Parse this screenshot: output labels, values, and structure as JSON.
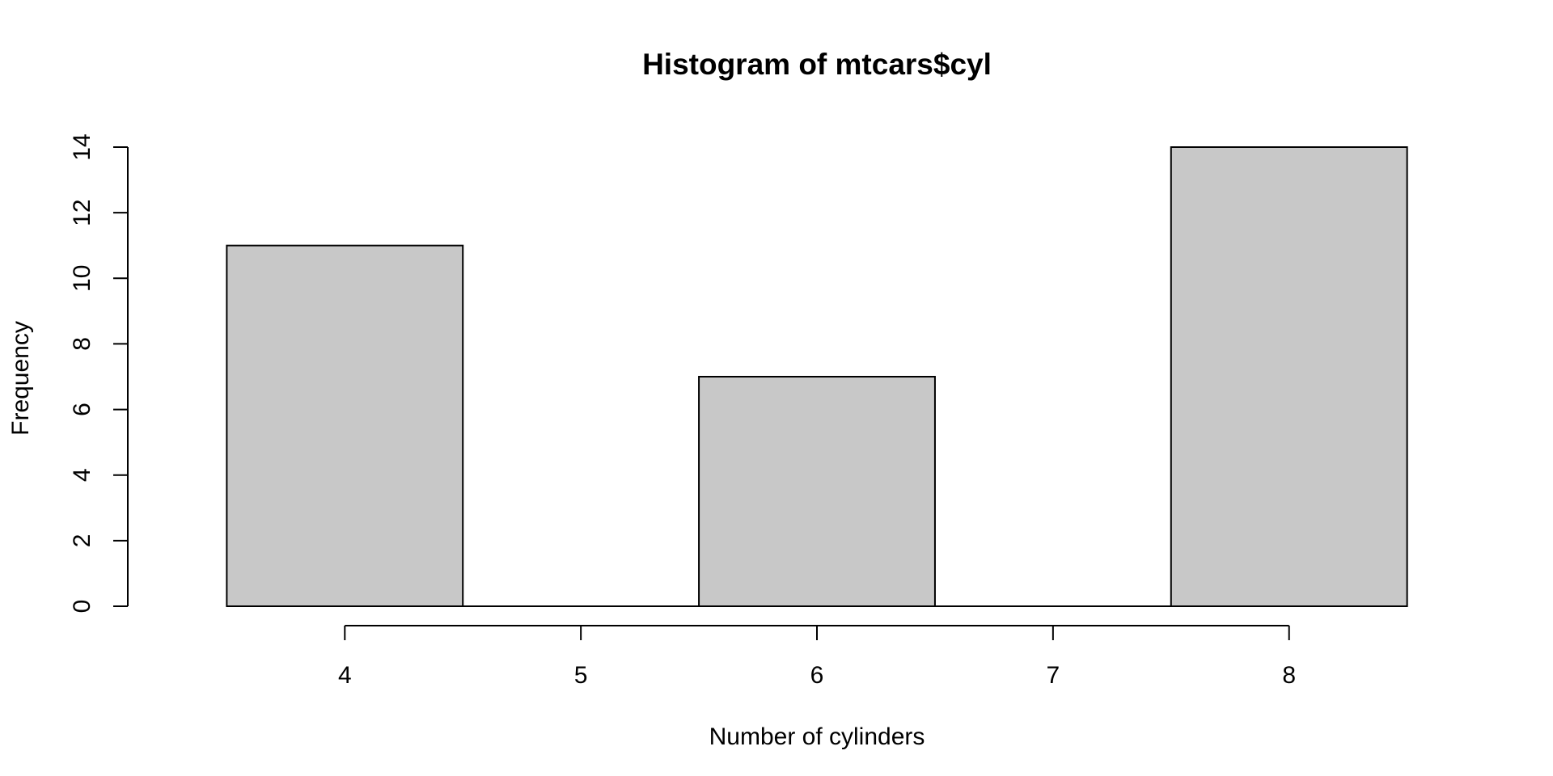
{
  "chart_data": {
    "type": "bar",
    "title": "Histogram of mtcars$cyl",
    "xlabel": "Number of cylinders",
    "ylabel": "Frequency",
    "bins": [
      {
        "from": 3.5,
        "to": 4.5,
        "count": 11
      },
      {
        "from": 4.5,
        "to": 5.5,
        "count": 0
      },
      {
        "from": 5.5,
        "to": 6.5,
        "count": 7
      },
      {
        "from": 6.5,
        "to": 7.5,
        "count": 0
      },
      {
        "from": 7.5,
        "to": 8.5,
        "count": 14
      }
    ],
    "xlim": [
      3.3,
      8.7
    ],
    "ylim": [
      0,
      14
    ],
    "x_ticks": [
      4,
      5,
      6,
      7,
      8
    ],
    "y_ticks": [
      0,
      2,
      4,
      6,
      8,
      10,
      12,
      14
    ],
    "bar_fill": "#c8c8c8",
    "grid": false,
    "legend": "none"
  }
}
